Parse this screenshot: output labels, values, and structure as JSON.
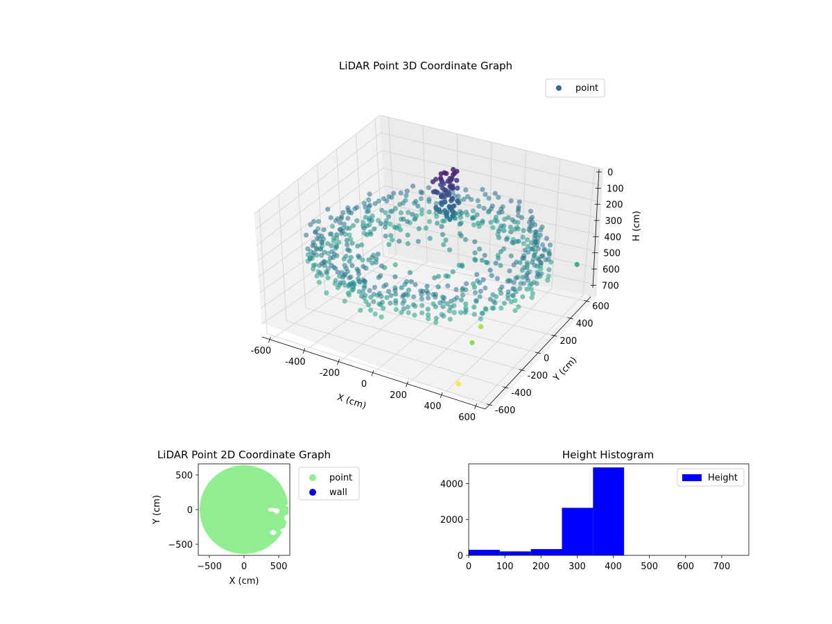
{
  "colors": {
    "background": "#ffffff",
    "pane": "#f2f2f2",
    "grid": "#cccccc",
    "point_2d": "#90ee90",
    "wall": "#0000ff",
    "histogram": "#0000ff",
    "legend_point_3d": "#2f6c8e"
  },
  "chart_data": [
    {
      "id": "lidar-3d",
      "type": "scatter",
      "projection": "3d",
      "title": "LiDAR Point 3D Coordinate Graph",
      "xlabel": "X (cm)",
      "ylabel": "Y (cm)",
      "zlabel": "H (cm)",
      "xlim": [
        -650,
        650
      ],
      "ylim": [
        -650,
        650
      ],
      "zlim": [
        780,
        0
      ],
      "z_axis_inverted": true,
      "x_ticks": [
        "-600",
        "-400",
        "-200",
        "0",
        "200",
        "400",
        "600"
      ],
      "y_ticks": [
        "-600",
        "-400",
        "-200",
        "0",
        "200",
        "400",
        "600"
      ],
      "z_ticks": [
        "0",
        "100",
        "200",
        "300",
        "400",
        "500",
        "600",
        "700"
      ],
      "colormap": "viridis",
      "legend": {
        "position": "top-right",
        "entries": [
          "point"
        ]
      },
      "grid": true,
      "series": [
        {
          "name": "point",
          "description_shape": "ring of points around the origin with a dense cluster near X≈-100, Y≈350",
          "ring_radius_range": [
            500,
            640
          ],
          "ring_height_range": [
            280,
            440
          ],
          "inner_points_height_range": [
            300,
            460
          ],
          "cluster_center": [
            -100,
            350
          ],
          "cluster_height_range": [
            60,
            320
          ],
          "outliers": [
            {
              "x": 420,
              "y": -500,
              "h": 780
            },
            {
              "x": 400,
              "y": -300,
              "h": 640
            },
            {
              "x": 330,
              "y": -60,
              "h": 680
            },
            {
              "x": 650,
              "y": 430,
              "h": 470
            }
          ]
        }
      ]
    },
    {
      "id": "lidar-2d",
      "type": "scatter",
      "title": "LiDAR Point 2D Coordinate Graph",
      "xlabel": "X (cm)",
      "ylabel": "Y (cm)",
      "xlim": [
        -660,
        660
      ],
      "ylim": [
        -660,
        660
      ],
      "x_ticks": [
        "−500",
        "0",
        "500"
      ],
      "y_ticks": [
        "−500",
        "0",
        "500"
      ],
      "legend": {
        "position": "outside-right",
        "entries": [
          "point",
          "wall"
        ]
      },
      "series": [
        {
          "name": "point",
          "shape": "filled disk of radius ~640 cm centered at origin, clipped by axes, with small gaps near X≈400-650, Y≈-350-50"
        },
        {
          "name": "wall",
          "points": []
        }
      ]
    },
    {
      "id": "height-histogram",
      "type": "bar",
      "title": "Height Histogram",
      "xlim": [
        0,
        775
      ],
      "ylim": [
        0,
        5100
      ],
      "x_ticks": [
        "0",
        "100",
        "200",
        "300",
        "400",
        "500",
        "600",
        "700"
      ],
      "y_ticks": [
        "0",
        "2000",
        "4000"
      ],
      "legend": {
        "position": "top-right",
        "entries": [
          "Height"
        ]
      },
      "series": [
        {
          "name": "Height",
          "bins": [
            {
              "x0": 0,
              "x1": 86,
              "count": 310
            },
            {
              "x0": 86,
              "x1": 172,
              "count": 220
            },
            {
              "x0": 172,
              "x1": 258,
              "count": 350
            },
            {
              "x0": 258,
              "x1": 344,
              "count": 2650
            },
            {
              "x0": 344,
              "x1": 430,
              "count": 4900
            },
            {
              "x0": 430,
              "x1": 516,
              "count": 6
            },
            {
              "x0": 516,
              "x1": 602,
              "count": 2
            },
            {
              "x0": 602,
              "x1": 688,
              "count": 1
            },
            {
              "x0": 688,
              "x1": 775,
              "count": 1
            }
          ]
        }
      ]
    }
  ]
}
